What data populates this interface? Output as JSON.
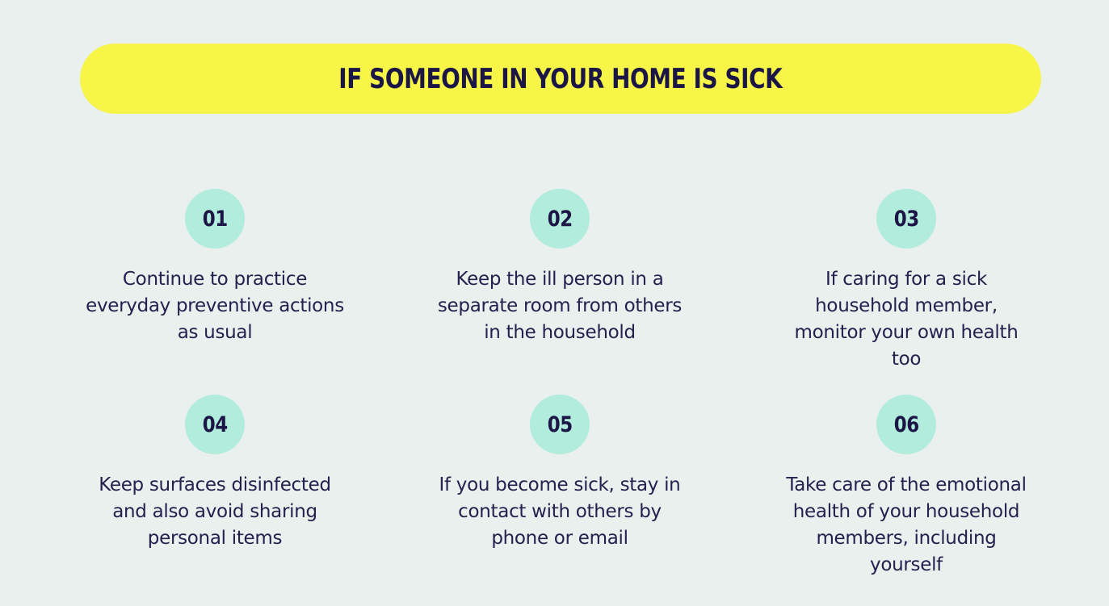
{
  "title": "IF SOMEONE IN YOUR HOME IS SICK",
  "colors": {
    "background": "#eaf0ee",
    "title_bar": "#f6f548",
    "badge": "#b2ecdc",
    "text": "#1b1646"
  },
  "steps": [
    {
      "number": "01",
      "text": "Continue to practice everyday preventive actions as usual"
    },
    {
      "number": "02",
      "text": "Keep the ill person in a separate room from others in the household"
    },
    {
      "number": "03",
      "text": "If caring for a sick household member, monitor your own health too"
    },
    {
      "number": "04",
      "text": "Keep surfaces disinfected and also avoid sharing personal items"
    },
    {
      "number": "05",
      "text": "If you become sick, stay in contact with others by phone or email"
    },
    {
      "number": "06",
      "text": "Take care of the emotional health of your household members, including yourself"
    }
  ]
}
